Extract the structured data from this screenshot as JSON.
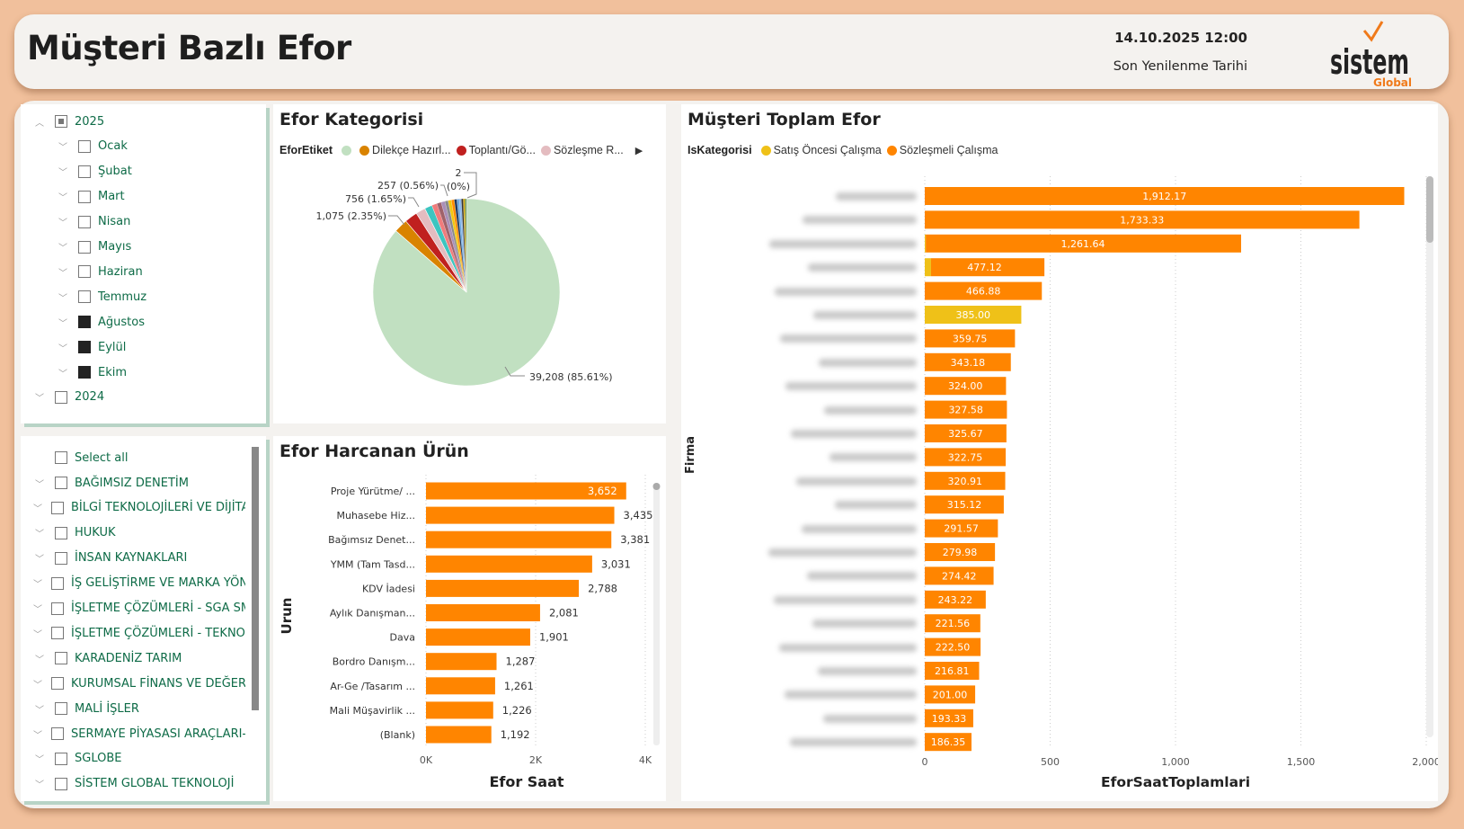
{
  "header": {
    "title": "Müşteri Bazlı Efor",
    "refresh_date": "14.10.2025 12:00",
    "refresh_label": "Son Yenilenme Tarihi",
    "logo_text": "sistem",
    "logo_sub": "Global"
  },
  "date_slicer": {
    "items": [
      {
        "label": "2025",
        "level": 0,
        "state": "partial",
        "expanded": true
      },
      {
        "label": "Ocak",
        "level": 1,
        "state": "off"
      },
      {
        "label": "Şubat",
        "level": 1,
        "state": "off"
      },
      {
        "label": "Mart",
        "level": 1,
        "state": "off"
      },
      {
        "label": "Nisan",
        "level": 1,
        "state": "off"
      },
      {
        "label": "Mayıs",
        "level": 1,
        "state": "off"
      },
      {
        "label": "Haziran",
        "level": 1,
        "state": "off"
      },
      {
        "label": "Temmuz",
        "level": 1,
        "state": "off"
      },
      {
        "label": "Ağustos",
        "level": 1,
        "state": "on"
      },
      {
        "label": "Eylül",
        "level": 1,
        "state": "on"
      },
      {
        "label": "Ekim",
        "level": 1,
        "state": "on"
      },
      {
        "label": "2024",
        "level": 0,
        "state": "off",
        "expanded": false
      }
    ]
  },
  "unit_slicer": {
    "select_all": "Select all",
    "items": [
      "BAĞIMSIZ DENETİM",
      "BİLGİ TEKNOLOJİLERİ VE DİJİTAL.",
      "HUKUK",
      "İNSAN KAYNAKLARI",
      "İŞ GELİŞTİRME VE MARKA YÖNE.",
      "İŞLETME ÇÖZÜMLERİ - SGA SM..",
      "İŞLETME ÇÖZÜMLERİ - TEKNOP..",
      "KARADENİZ TARIM",
      "KURUMSAL FİNANS VE DEĞERL.",
      "MALİ İŞLER",
      "SERMAYE PİYASASI ARAÇLARI-F...",
      "SGLOBE",
      "SİSTEM GLOBAL TEKNOLOJİ"
    ]
  },
  "chart_data": [
    {
      "type": "pie",
      "title": "Efor Kategorisi",
      "legend_title": "EforEtiket",
      "legend": [
        "",
        "Dilekçe Hazırl...",
        "Toplantı/Gö...",
        "Sözleşme R..."
      ],
      "slices": [
        {
          "value": 39208,
          "percent": 85.61,
          "color": "#c1e0c1",
          "label": "39,208 (85.61%)"
        },
        {
          "value": 1075,
          "percent": 2.35,
          "color": "#d98300",
          "label": "1,075 (2.35%)"
        },
        {
          "value": 1000,
          "percent": 2.2,
          "color": "#c0201f"
        },
        {
          "value": 756,
          "percent": 1.65,
          "color": "#e4bcc0",
          "label": "756 (1.65%)"
        },
        {
          "value": 600,
          "percent": 1.3,
          "color": "#3dc5c0"
        },
        {
          "value": 400,
          "percent": 0.9,
          "color": "#f07c7c"
        },
        {
          "value": 350,
          "percent": 0.75,
          "color": "#a0626a"
        },
        {
          "value": 300,
          "percent": 0.65,
          "color": "#a98fb8"
        },
        {
          "value": 257,
          "percent": 0.56,
          "color": "#8a8a8a",
          "label": "257 (0.56%)"
        },
        {
          "value": 250,
          "percent": 0.55,
          "color": "#f2c80f"
        },
        {
          "value": 230,
          "percent": 0.5,
          "color": "#ff8c00"
        },
        {
          "value": 200,
          "percent": 0.45,
          "color": "#1f3a5f"
        },
        {
          "value": 180,
          "percent": 0.4,
          "color": "#6aa7e0"
        },
        {
          "value": 160,
          "percent": 0.35,
          "color": "#8ab4e8"
        },
        {
          "value": 150,
          "percent": 0.33,
          "color": "#333333"
        },
        {
          "value": 130,
          "percent": 0.28,
          "color": "#d6a300"
        },
        {
          "value": 120,
          "percent": 0.26,
          "color": "#5c8a3a"
        },
        {
          "value": 2,
          "percent": 0,
          "color": "#b0b0b0",
          "label": "2\n(0%)"
        }
      ]
    },
    {
      "type": "bar",
      "orientation": "horizontal",
      "title": "Efor Harcanan Ürün",
      "xlabel": "Efor Saat",
      "ylabel": "Urun",
      "xlim": [
        0,
        4000
      ],
      "xticks": [
        "0K",
        "2K",
        "4K"
      ],
      "grid": true,
      "color": "#ff8500",
      "categories": [
        "Proje Yürütme/ ...",
        "Muhasebe Hiz...",
        "Bağımsız Denet...",
        "YMM (Tam Tasd...",
        "KDV İadesi",
        "Aylık Danışman...",
        "Dava",
        "Bordro Danışm...",
        "Ar-Ge /Tasarım ...",
        "Mali Müşavirlik ...",
        "(Blank)"
      ],
      "values": [
        3652,
        3435,
        3381,
        3031,
        2788,
        2081,
        1901,
        1287,
        1261,
        1226,
        1192
      ],
      "labels": [
        "3,652",
        "3,435",
        "3,381",
        "3,031",
        "2,788",
        "2,081",
        "1,901",
        "1,287",
        "1,261",
        "1,226",
        "1,192"
      ]
    },
    {
      "type": "bar",
      "orientation": "horizontal",
      "stacked": true,
      "title": "Müşteri Toplam Efor",
      "legend_title": "IsKategorisi",
      "xlabel": "EforSaatToplamlari",
      "ylabel": "Firma",
      "xlim": [
        0,
        2000
      ],
      "xticks": [
        "0",
        "500",
        "1,000",
        "1,500",
        "2,000"
      ],
      "grid": true,
      "category_labels_blurred": true,
      "series": [
        {
          "name": "Satış Öncesi Çalışma",
          "color": "#efc118",
          "values": [
            0,
            0,
            4,
            25,
            0,
            385,
            0,
            0,
            0,
            0,
            0,
            0,
            0,
            0,
            0,
            0,
            0,
            0,
            0,
            0,
            0,
            0,
            0,
            0
          ]
        },
        {
          "name": "Sözleşmeli Çalışma",
          "color": "#ff8500",
          "values": [
            1912.17,
            1733.33,
            1257.64,
            452.12,
            466.88,
            0,
            359.75,
            343.18,
            324.0,
            327.58,
            325.67,
            322.75,
            320.91,
            315.12,
            291.57,
            279.98,
            274.42,
            243.22,
            221.56,
            222.5,
            216.81,
            201.0,
            193.33,
            186.35
          ]
        }
      ],
      "totals": [
        "1,912.17",
        "1,733.33",
        "1,261.64",
        "477.12",
        "466.88",
        "385.00",
        "359.75",
        "343.18",
        "324.00",
        "327.58",
        "325.67",
        "322.75",
        "320.91",
        "315.12",
        "291.57",
        "279.98",
        "274.42",
        "243.22",
        "221.56",
        "222.50",
        "216.81",
        "201.00",
        "193.33",
        "186.35"
      ]
    }
  ]
}
